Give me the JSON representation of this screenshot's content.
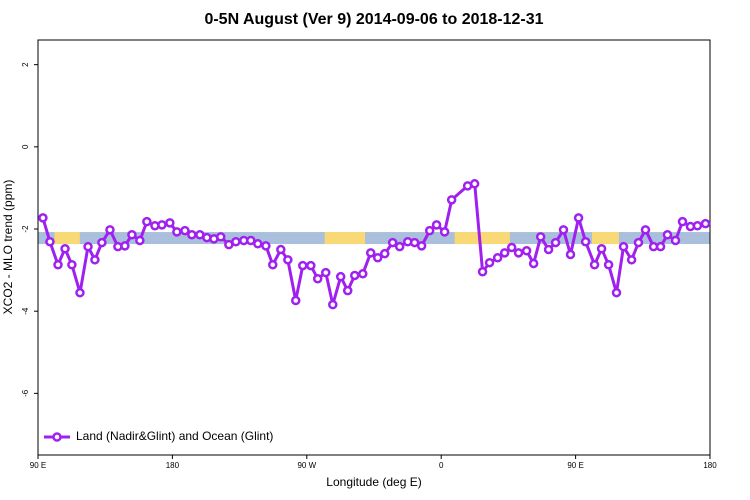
{
  "chart_data": {
    "type": "line",
    "title": "0-5N August (Ver 9)   2014-09-06 to 2018-12-31",
    "x_label": "Longitude (deg E)",
    "y_label": "XCO2 - MLO trend (ppm)",
    "xlim": [
      90,
      540
    ],
    "ylim": [
      -7.5,
      2.6
    ],
    "xticks": [
      {
        "value": 90,
        "label": "90 E"
      },
      180,
      {
        "value": 270,
        "label": "90 W"
      },
      {
        "value": 360,
        "label": "0"
      },
      {
        "value": 450,
        "label": "90 E"
      },
      {
        "value": 540,
        "label": "180"
      }
    ],
    "yticks": [
      -6,
      -4,
      -2,
      0,
      2
    ],
    "grid": false,
    "legend": "bottomleft",
    "band": {
      "y": -2.22,
      "color": "#a9bfdc",
      "land_color": "#f9d976",
      "land_ranges": [
        [
          101,
          118
        ],
        [
          282,
          309
        ],
        [
          369,
          406
        ],
        [
          461,
          479
        ]
      ]
    },
    "x": [
      93.3,
      98.0,
      103.4,
      108.1,
      112.7,
      118.1,
      123.5,
      128.1,
      132.8,
      138.2,
      143.5,
      148.2,
      152.9,
      158.2,
      162.9,
      168.3,
      173.0,
      178.3,
      183.0,
      188.4,
      193.0,
      198.4,
      203.1,
      207.8,
      212.4,
      217.8,
      222.5,
      227.8,
      232.5,
      237.2,
      242.6,
      247.2,
      252.6,
      257.3,
      262.6,
      267.3,
      272.7,
      277.3,
      282.7,
      287.4,
      292.7,
      297.4,
      302.1,
      307.5,
      312.8,
      317.5,
      322.2,
      327.5,
      332.2,
      337.6,
      342.2,
      346.9,
      352.3,
      356.9,
      362.3,
      367.0,
      377.7,
      382.4,
      387.7,
      392.4,
      397.8,
      402.5,
      407.2,
      411.8,
      417.2,
      421.9,
      426.6,
      431.9,
      436.6,
      441.9,
      446.6,
      452.0,
      456.7,
      462.7,
      467.4,
      472.1,
      477.4,
      482.1,
      487.5,
      492.1,
      496.8,
      502.2,
      506.9,
      511.5,
      516.9,
      521.6,
      526.9,
      531.6,
      537.0
    ],
    "series": [
      {
        "name": "Land (Nadir&Glint) and Ocean (Glint)",
        "color": "#a020f0",
        "values": [
          -1.73,
          -2.31,
          -2.87,
          -2.48,
          -2.87,
          -3.55,
          -2.43,
          -2.75,
          -2.33,
          -2.02,
          -2.43,
          -2.41,
          -2.14,
          -2.28,
          -1.82,
          -1.92,
          -1.9,
          -1.85,
          -2.07,
          -2.04,
          -2.14,
          -2.14,
          -2.21,
          -2.24,
          -2.19,
          -2.38,
          -2.31,
          -2.28,
          -2.28,
          -2.36,
          -2.41,
          -2.87,
          -2.5,
          -2.75,
          -3.74,
          -2.89,
          -2.89,
          -3.21,
          -3.06,
          -3.84,
          -3.16,
          -3.5,
          -3.13,
          -3.09,
          -2.58,
          -2.7,
          -2.6,
          -2.33,
          -2.43,
          -2.31,
          -2.33,
          -2.41,
          -2.04,
          -1.9,
          -2.07,
          -1.29,
          -0.95,
          -0.9,
          -3.04,
          -2.82,
          -2.7,
          -2.58,
          -2.45,
          -2.58,
          -2.53,
          -2.84,
          -2.19,
          -2.5,
          -2.33,
          -2.02,
          -2.62,
          -1.73,
          -2.31,
          -2.87,
          -2.48,
          -2.87,
          -3.55,
          -2.43,
          -2.75,
          -2.33,
          -2.02,
          -2.43,
          -2.43,
          -2.14,
          -2.28,
          -1.82,
          -1.94,
          -1.92,
          -1.87
        ]
      }
    ]
  }
}
